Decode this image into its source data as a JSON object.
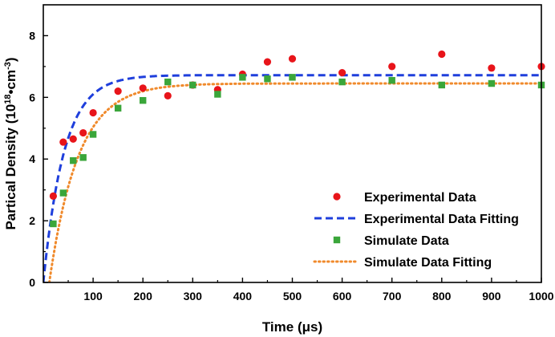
{
  "chart_data": {
    "type": "scatter",
    "title": "",
    "xlabel": "Time (μs)",
    "ylabel": {
      "prefix": "Partical Density (10",
      "exp1": "18",
      "mid": "•cm",
      "exp2": "-3",
      "suffix": ")"
    },
    "xlim": [
      0,
      1000
    ],
    "ylim": [
      0,
      9
    ],
    "xticks": [
      100,
      200,
      300,
      400,
      500,
      600,
      700,
      800,
      900,
      1000
    ],
    "yticks": [
      0,
      2,
      4,
      6,
      8
    ],
    "legend_position": "bottom-right",
    "colors": {
      "experimental": "#e8141a",
      "experimental_fit": "#1f3fdc",
      "simulate": "#3aa63a",
      "simulate_fit": "#f08a2c"
    },
    "series": [
      {
        "name": "Experimental Data",
        "kind": "points",
        "marker": "circle",
        "x": [
          20,
          40,
          60,
          80,
          100,
          150,
          200,
          250,
          300,
          350,
          400,
          450,
          500,
          600,
          700,
          800,
          900,
          1000
        ],
        "y": [
          2.8,
          4.55,
          4.65,
          4.85,
          5.5,
          6.2,
          6.3,
          6.05,
          6.4,
          6.25,
          6.75,
          7.15,
          7.25,
          6.8,
          7.0,
          7.4,
          6.95,
          7.0
        ]
      },
      {
        "name": "Experimental Data Fitting",
        "kind": "fit",
        "dash": "dashed",
        "plateau": 6.72,
        "tau": 42,
        "x0": 0,
        "y0": 0
      },
      {
        "name": "Simulate Data",
        "kind": "points",
        "marker": "square",
        "x": [
          20,
          40,
          60,
          80,
          100,
          150,
          200,
          250,
          300,
          350,
          400,
          450,
          500,
          600,
          700,
          800,
          900,
          1000
        ],
        "y": [
          1.9,
          2.9,
          3.95,
          4.05,
          4.8,
          5.65,
          5.9,
          6.5,
          6.4,
          6.1,
          6.65,
          6.6,
          6.65,
          6.5,
          6.55,
          6.4,
          6.45,
          6.4
        ]
      },
      {
        "name": "Simulate Data Fitting",
        "kind": "fit",
        "dash": "dotted",
        "plateau": 6.45,
        "tau": 58,
        "x0": 12,
        "y0": 0
      }
    ]
  }
}
